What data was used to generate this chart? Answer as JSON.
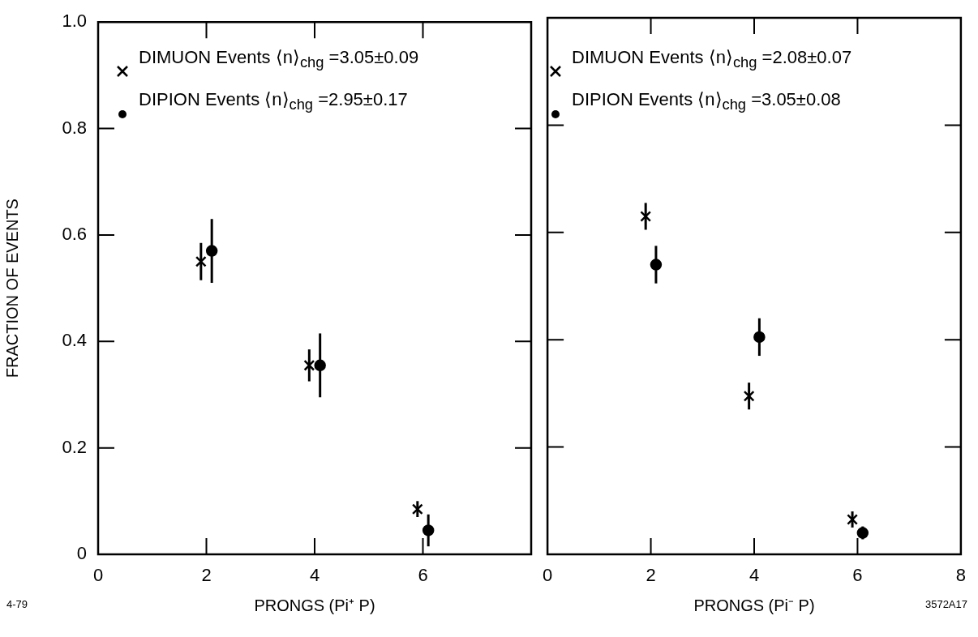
{
  "chart_data": [
    {
      "type": "scatter",
      "xlabel": "PRONGS (Pi⁺ P)",
      "ylabel": "FRACTION OF EVENTS",
      "xlim": [
        0,
        8
      ],
      "xticks": [
        0,
        2,
        4,
        6
      ],
      "ylim": [
        0,
        1.0
      ],
      "yticks": [
        0,
        {
          "value": 0.2,
          "label": "0.2"
        },
        {
          "value": 0.4,
          "label": "0.4"
        },
        {
          "value": 0.6,
          "label": "0.6"
        },
        {
          "value": 0.8,
          "label": "0.8"
        },
        {
          "value": 1.0,
          "label": "1.0"
        }
      ],
      "grid": false,
      "legend": "top left",
      "annotations": [
        "4-79"
      ],
      "series": [
        {
          "name": "DIMUON Events ⟨n⟩$_{chg}$ =3.05±0.09",
          "color": "#000000",
          "marker": "cross",
          "x": [
            1.9,
            3.9,
            5.9
          ],
          "values": [
            0.55,
            0.355,
            0.085
          ],
          "errors": [
            0.035,
            0.03,
            0.015
          ]
        },
        {
          "name": "DIPION Events ⟨n⟩$_{chg}$ =2.95±0.17",
          "color": "#000000",
          "marker": "circle",
          "x": [
            2.1,
            4.1,
            6.1
          ],
          "values": [
            0.57,
            0.355,
            0.045
          ],
          "errors": [
            0.06,
            0.06,
            0.03
          ]
        }
      ]
    },
    {
      "type": "scatter",
      "xlabel": "PRONGS (Pi⁻ P)",
      "xlim": [
        0,
        8
      ],
      "xticks": [
        0,
        2,
        4,
        6,
        8
      ],
      "ylim": [
        0,
        1.0
      ],
      "yticks": [
        0,
        0.2,
        0.4,
        0.6,
        0.8,
        1.0
      ],
      "tick_labels": "x",
      "grid": false,
      "legend": "top left",
      "annotations": [
        "3572A17"
      ],
      "series": [
        {
          "name": "DIMUON Events ⟨n⟩$_{chg}$ =2.08±0.07",
          "color": "#000000",
          "marker": "cross",
          "x": [
            1.9,
            3.9,
            5.9
          ],
          "values": [
            0.63,
            0.295,
            0.065
          ],
          "errors": [
            0.025,
            0.025,
            0.015
          ]
        },
        {
          "name": "DIPION Events ⟨n⟩$_{chg}$ =3.05±0.08",
          "color": "#000000",
          "marker": "circle",
          "x": [
            2.1,
            4.1,
            6.1
          ],
          "values": [
            0.54,
            0.405,
            0.04
          ],
          "errors": [
            0.035,
            0.035,
            0.012
          ]
        }
      ]
    }
  ]
}
